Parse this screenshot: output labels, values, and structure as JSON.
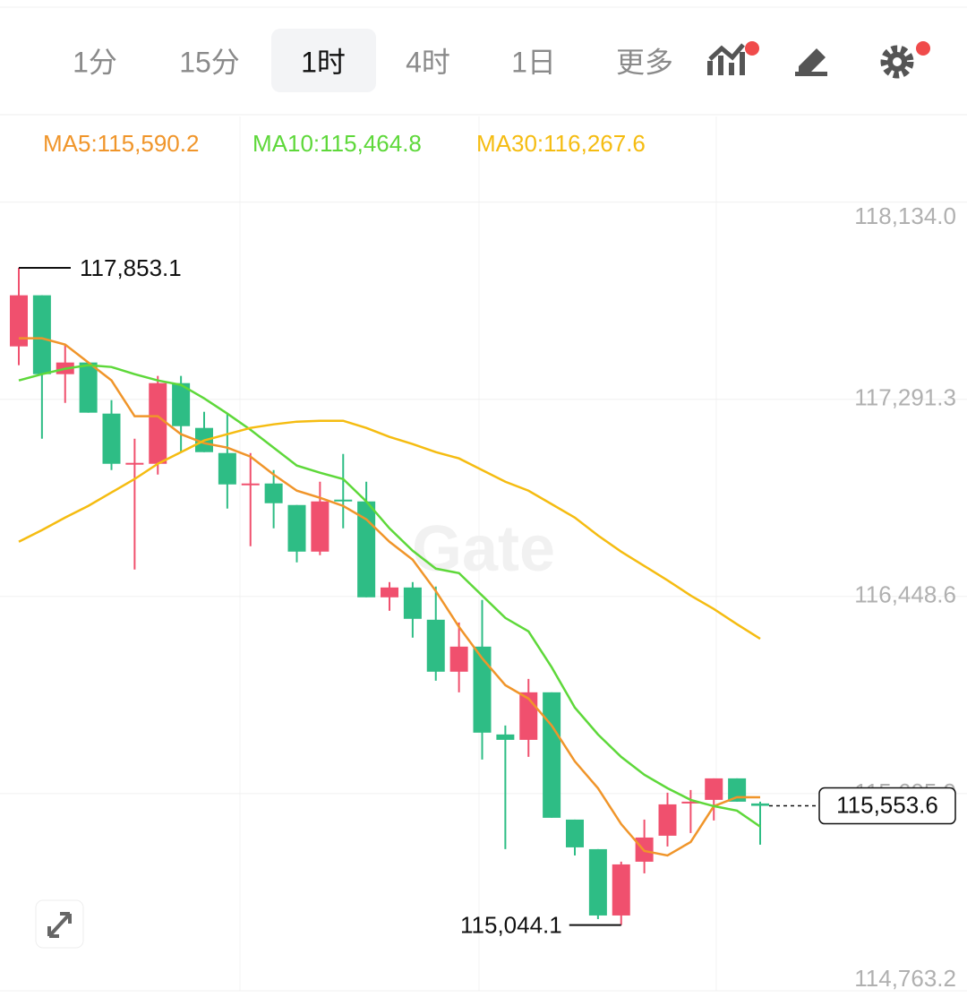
{
  "tabs": [
    "1分",
    "15分",
    "1时",
    "4时",
    "1日",
    "更多"
  ],
  "selected_tab": 2,
  "chart_data": {
    "type": "candlestick",
    "watermark": "Gate",
    "up_color": "#f0506e",
    "down_color": "#2ebd85",
    "ylim": [
      114763.2,
      118500
    ],
    "yticks": [
      {
        "value": 118134.0,
        "label": "118,134.0"
      },
      {
        "value": 117291.3,
        "label": "117,291.3"
      },
      {
        "value": 116448.6,
        "label": "116,448.6"
      },
      {
        "value": 115605.9,
        "label": "115,605.9"
      },
      {
        "value": 114763.2,
        "label": "114,763.2"
      }
    ],
    "grid": true,
    "open": [
      117517.3,
      117735.7,
      117398.6,
      117448.4,
      117230.0,
      117015.5,
      117015.5,
      117360.3,
      117168.8,
      117061.5,
      116927.4,
      116931.3,
      116839.3,
      116640.1,
      116862.3,
      116854.7,
      116444.8,
      116486.9,
      116349.0,
      116126.9,
      116234.1,
      115858.7,
      115835.7,
      116038.8,
      115494.8,
      115368.4,
      115085.0,
      115314.8,
      115425.9,
      115563.8,
      115579.1,
      115671.0,
      115563.8
    ],
    "high": [
      117853.1,
      117735.7,
      117525.0,
      117448.4,
      117287.5,
      117122.8,
      117390.9,
      117390.9,
      117237.7,
      117230.0,
      117061.5,
      116988.7,
      116839.3,
      116938.9,
      117057.7,
      116938.9,
      116509.9,
      116509.9,
      116490.8,
      116337.5,
      116433.3,
      115897.0,
      116096.2,
      116038.8,
      115494.8,
      115368.4,
      115314.8,
      115494.8,
      115609.7,
      115621.2,
      115671.0,
      115671.0,
      115571.4
    ],
    "low": [
      117436.9,
      117122.8,
      117276.0,
      117233.9,
      116988.7,
      116563.5,
      116969.6,
      117065.3,
      117065.3,
      116824.0,
      116663.1,
      116739.7,
      116594.2,
      116624.8,
      116739.7,
      116444.8,
      116387.3,
      116272.4,
      116088.6,
      116038.8,
      115751.5,
      115368.4,
      115763.0,
      115502.5,
      115341.6,
      115069.6,
      115044.1,
      115265.0,
      115379.9,
      115437.4,
      115491.0,
      115571.4,
      115387.6
    ],
    "close": [
      117735.7,
      117398.6,
      117448.4,
      117233.9,
      117015.5,
      117019.4,
      117360.3,
      117176.4,
      117065.3,
      116927.4,
      116931.3,
      116847.0,
      116640.1,
      116854.7,
      116858.5,
      116444.8,
      116486.9,
      116352.9,
      116126.9,
      116234.1,
      115866.4,
      115835.7,
      116038.8,
      115502.5,
      115376.1,
      115085.0,
      115303.3,
      115418.2,
      115559.9,
      115571.4,
      115671.0,
      115571.4,
      115553.6
    ],
    "series": [
      {
        "name": "MA5:115,590.2",
        "color": "#f0952a",
        "values": [
          117551.8,
          117551.8,
          117525.0,
          117448.4,
          117371.8,
          117218.6,
          117218.6,
          117141.9,
          117103.6,
          117084.5,
          117046.2,
          116969.6,
          116900.6,
          116870.0,
          116835.5,
          116778.0,
          116682.3,
          116605.7,
          116471.6,
          116318.4,
          116184.3,
          116069.4,
          116011.9,
          115897.0,
          115743.8,
          115628.9,
          115475.7,
          115360.8,
          115341.6,
          115399.1,
          115552.3,
          115590.6,
          115590.2
        ]
      },
      {
        "name": "MA10:115,464.8",
        "color": "#5ed83a",
        "values": [
          117371.8,
          117398.6,
          117421.6,
          117436.9,
          117429.2,
          117398.6,
          117371.8,
          117352.6,
          117295.2,
          117230.0,
          117161.1,
          117084.5,
          117007.9,
          116977.2,
          116950.4,
          116854.7,
          116739.7,
          116644.0,
          116567.4,
          116548.2,
          116452.4,
          116356.7,
          116299.2,
          116146.0,
          115973.6,
          115858.7,
          115763.0,
          115686.4,
          115628.9,
          115579.1,
          115552.3,
          115533.1,
          115464.8
        ]
      },
      {
        "name": "MA30:116,267.6",
        "color": "#f5bc11",
        "values": [
          116682.3,
          116732.1,
          116785.7,
          116835.5,
          116893.0,
          116950.4,
          117015.5,
          117065.3,
          117115.1,
          117141.9,
          117168.8,
          117184.1,
          117195.6,
          117199.4,
          117199.4,
          117168.8,
          117130.4,
          117099.8,
          117065.3,
          117038.5,
          116988.7,
          116938.9,
          116900.6,
          116843.2,
          116785.7,
          116709.1,
          116640.1,
          116578.9,
          116517.6,
          116452.4,
          116395.0,
          116329.9,
          116267.6
        ]
      }
    ],
    "high_label": "117,853.1",
    "low_label": "115,044.1",
    "current_price_label": "115,553.6"
  }
}
